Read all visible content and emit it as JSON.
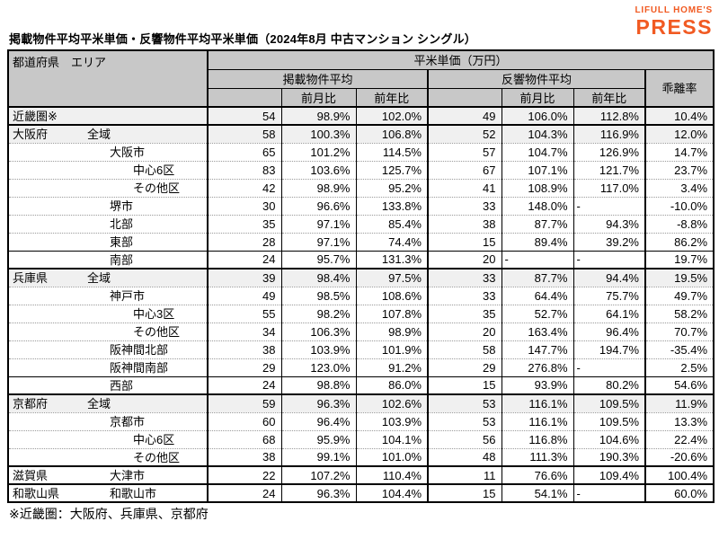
{
  "page": {
    "title": "掲載物件平均平米単価・反響物件平均平米単価（2024年8月 中古マンション シングル）",
    "footnote": "※近畿圏：大阪府、兵庫県、京都府"
  },
  "logo": {
    "brand": "LIFULL HOME'S",
    "press": "PRESS",
    "color": "#f15a22"
  },
  "table": {
    "header": {
      "row_label": "都道府県　エリア",
      "unit_group": "平米単価（万円）",
      "listed_group": "掲載物件平均",
      "inquiry_group": "反響物件平均",
      "divergence": "乖離率",
      "mom": "前月比",
      "yoy": "前年比"
    },
    "columns": [
      "都道府県・エリア",
      "掲載物件平均",
      "掲載前月比",
      "掲載前年比",
      "反響物件平均",
      "反響前月比",
      "反響前年比",
      "乖離率"
    ],
    "rows": [
      {
        "pref": "近畿圏※",
        "area": "",
        "indent": 0,
        "v": [
          "54",
          "98.9%",
          "102.0%",
          "49",
          "106.0%",
          "112.8%",
          "10.4%"
        ],
        "shaded": true,
        "bb": "thick"
      },
      {
        "pref": "大阪府",
        "area": "全域",
        "indent": 1,
        "v": [
          "58",
          "100.3%",
          "106.8%",
          "52",
          "104.3%",
          "116.9%",
          "12.0%"
        ],
        "shaded": true,
        "bb": "dotted"
      },
      {
        "pref": "",
        "area": "大阪市",
        "indent": 2,
        "v": [
          "65",
          "101.2%",
          "114.5%",
          "57",
          "104.7%",
          "126.9%",
          "14.7%"
        ],
        "shaded": false,
        "bb": "dotted"
      },
      {
        "pref": "",
        "area": "中心6区",
        "indent": 3,
        "v": [
          "83",
          "103.6%",
          "125.7%",
          "67",
          "107.1%",
          "121.7%",
          "23.7%"
        ],
        "shaded": false,
        "bb": "dotted"
      },
      {
        "pref": "",
        "area": "その他区",
        "indent": 3,
        "v": [
          "42",
          "98.9%",
          "95.2%",
          "41",
          "108.9%",
          "117.0%",
          "3.4%"
        ],
        "shaded": false,
        "bb": "dotted"
      },
      {
        "pref": "",
        "area": "堺市",
        "indent": 2,
        "v": [
          "30",
          "96.6%",
          "133.8%",
          "33",
          "148.0%",
          "-",
          "-10.0%"
        ],
        "shaded": false,
        "bb": "dotted"
      },
      {
        "pref": "",
        "area": "北部",
        "indent": 2,
        "v": [
          "35",
          "97.1%",
          "85.4%",
          "38",
          "87.7%",
          "94.3%",
          "-8.8%"
        ],
        "shaded": false,
        "bb": "dotted"
      },
      {
        "pref": "",
        "area": "東部",
        "indent": 2,
        "v": [
          "28",
          "97.1%",
          "74.4%",
          "15",
          "89.4%",
          "39.2%",
          "86.2%"
        ],
        "shaded": false,
        "bb": "solid"
      },
      {
        "pref": "",
        "area": "南部",
        "indent": 2,
        "v": [
          "24",
          "95.7%",
          "131.3%",
          "20",
          "-",
          "-",
          "19.7%"
        ],
        "shaded": false,
        "bb": "thick"
      },
      {
        "pref": "兵庫県",
        "area": "全域",
        "indent": 1,
        "v": [
          "39",
          "98.4%",
          "97.5%",
          "33",
          "87.7%",
          "94.4%",
          "19.5%"
        ],
        "shaded": true,
        "bb": "dotted"
      },
      {
        "pref": "",
        "area": "神戸市",
        "indent": 2,
        "v": [
          "49",
          "98.5%",
          "108.6%",
          "33",
          "64.4%",
          "75.7%",
          "49.7%"
        ],
        "shaded": false,
        "bb": "dotted"
      },
      {
        "pref": "",
        "area": "中心3区",
        "indent": 3,
        "v": [
          "55",
          "98.2%",
          "107.8%",
          "35",
          "52.7%",
          "64.1%",
          "58.2%"
        ],
        "shaded": false,
        "bb": "dotted"
      },
      {
        "pref": "",
        "area": "その他区",
        "indent": 3,
        "v": [
          "34",
          "106.3%",
          "98.9%",
          "20",
          "163.4%",
          "96.4%",
          "70.7%"
        ],
        "shaded": false,
        "bb": "dotted"
      },
      {
        "pref": "",
        "area": "阪神間北部",
        "indent": 2,
        "v": [
          "38",
          "103.9%",
          "101.9%",
          "58",
          "147.7%",
          "194.7%",
          "-35.4%"
        ],
        "shaded": false,
        "bb": "dotted"
      },
      {
        "pref": "",
        "area": "阪神間南部",
        "indent": 2,
        "v": [
          "29",
          "123.0%",
          "91.2%",
          "29",
          "276.8%",
          "-",
          "2.5%"
        ],
        "shaded": false,
        "bb": "solid"
      },
      {
        "pref": "",
        "area": "西部",
        "indent": 2,
        "v": [
          "24",
          "98.8%",
          "86.0%",
          "15",
          "93.9%",
          "80.2%",
          "54.6%"
        ],
        "shaded": false,
        "bb": "thick"
      },
      {
        "pref": "京都府",
        "area": "全域",
        "indent": 1,
        "v": [
          "59",
          "96.3%",
          "102.6%",
          "53",
          "116.1%",
          "109.5%",
          "11.9%"
        ],
        "shaded": true,
        "bb": "dotted"
      },
      {
        "pref": "",
        "area": "京都市",
        "indent": 2,
        "v": [
          "60",
          "96.4%",
          "103.9%",
          "53",
          "116.1%",
          "109.5%",
          "13.3%"
        ],
        "shaded": false,
        "bb": "dotted"
      },
      {
        "pref": "",
        "area": "中心6区",
        "indent": 3,
        "v": [
          "68",
          "95.9%",
          "104.1%",
          "56",
          "116.8%",
          "104.6%",
          "22.4%"
        ],
        "shaded": false,
        "bb": "dotted"
      },
      {
        "pref": "",
        "area": "その他区",
        "indent": 3,
        "v": [
          "38",
          "99.1%",
          "101.0%",
          "48",
          "111.3%",
          "190.3%",
          "-20.6%"
        ],
        "shaded": false,
        "bb": "thick"
      },
      {
        "pref": "滋賀県",
        "area": "大津市",
        "indent": 2,
        "v": [
          "22",
          "107.2%",
          "110.4%",
          "11",
          "76.6%",
          "109.4%",
          "100.4%"
        ],
        "shaded": false,
        "bb": "thick"
      },
      {
        "pref": "和歌山県",
        "area": "和歌山市",
        "indent": 2,
        "v": [
          "24",
          "96.3%",
          "104.4%",
          "15",
          "54.1%",
          "-",
          "60.0%"
        ],
        "shaded": false,
        "bb": "thick"
      }
    ]
  }
}
